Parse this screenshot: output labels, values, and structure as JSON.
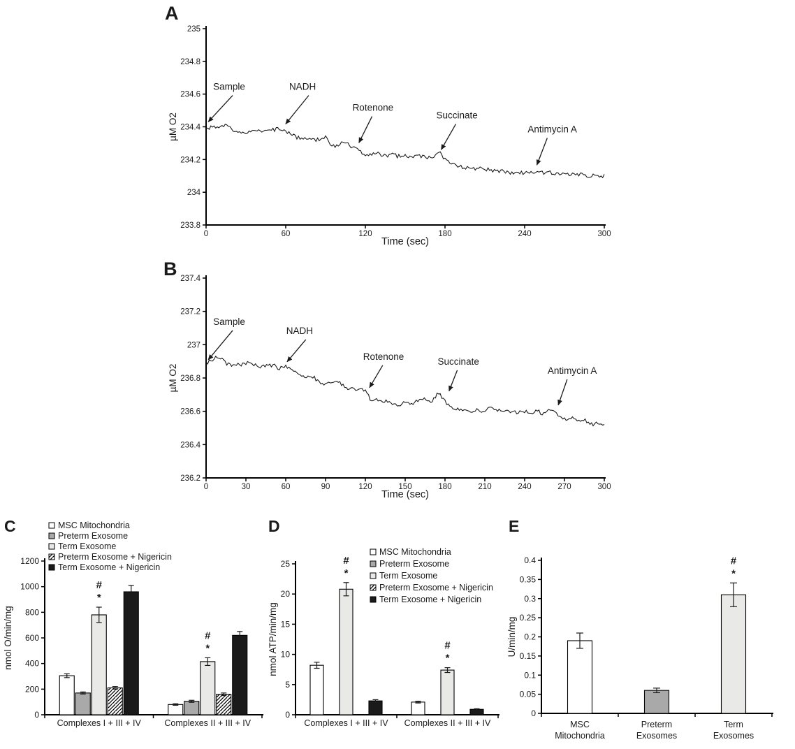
{
  "figure": {
    "panel_labels": [
      "A",
      "B",
      "C",
      "D",
      "E"
    ],
    "palette": {
      "white": "#ffffff",
      "gray": "#a9a9a9",
      "lightgray": "#e9e9e7",
      "black": "#1a1a1a",
      "line": "#000000",
      "text": "#1a1a1a"
    }
  },
  "chart_data": [
    {
      "id": "A",
      "type": "line",
      "xlabel": "Time (sec)",
      "ylabel": "µM O2",
      "xlim": [
        0,
        300
      ],
      "xticks": [
        0,
        60,
        120,
        180,
        240,
        300
      ],
      "ylim": [
        233.8,
        235
      ],
      "yticks": [
        233.8,
        234,
        234.2,
        234.4,
        234.6,
        234.8,
        235
      ],
      "noise": 0.012,
      "anchors": [
        [
          0,
          234.38
        ],
        [
          5,
          234.4
        ],
        [
          10,
          234.39
        ],
        [
          15,
          234.41
        ],
        [
          20,
          234.38
        ],
        [
          25,
          234.37
        ],
        [
          30,
          234.36
        ],
        [
          35,
          234.38
        ],
        [
          40,
          234.37
        ],
        [
          45,
          234.38
        ],
        [
          50,
          234.38
        ],
        [
          55,
          234.39
        ],
        [
          60,
          234.37
        ],
        [
          65,
          234.35
        ],
        [
          70,
          234.33
        ],
        [
          75,
          234.33
        ],
        [
          80,
          234.32
        ],
        [
          85,
          234.32
        ],
        [
          90,
          234.34
        ],
        [
          95,
          234.28
        ],
        [
          100,
          234.29
        ],
        [
          105,
          234.31
        ],
        [
          110,
          234.27
        ],
        [
          115,
          234.26
        ],
        [
          120,
          234.22
        ],
        [
          125,
          234.23
        ],
        [
          130,
          234.24
        ],
        [
          135,
          234.22
        ],
        [
          140,
          234.23
        ],
        [
          145,
          234.22
        ],
        [
          150,
          234.23
        ],
        [
          155,
          234.21
        ],
        [
          160,
          234.22
        ],
        [
          165,
          234.22
        ],
        [
          170,
          234.21
        ],
        [
          175,
          234.25
        ],
        [
          180,
          234.2
        ],
        [
          185,
          234.17
        ],
        [
          190,
          234.16
        ],
        [
          195,
          234.15
        ],
        [
          200,
          234.15
        ],
        [
          210,
          234.14
        ],
        [
          220,
          234.13
        ],
        [
          230,
          234.12
        ],
        [
          240,
          234.12
        ],
        [
          250,
          234.12
        ],
        [
          260,
          234.12
        ],
        [
          270,
          234.11
        ],
        [
          280,
          234.11
        ],
        [
          290,
          234.1
        ],
        [
          300,
          234.1
        ]
      ],
      "annotations": [
        {
          "label": "Sample",
          "text": [
            5.3,
            234.643
          ],
          "tip": [
            1.6,
            234.43
          ]
        },
        {
          "label": "NADH",
          "text": [
            62.6,
            234.643
          ],
          "tip": [
            59.9,
            234.417
          ]
        },
        {
          "label": "Rotenone",
          "text": [
            110.3,
            234.515
          ],
          "tip": [
            115.1,
            234.302
          ]
        },
        {
          "label": "Succinate",
          "text": [
            173.4,
            234.468
          ],
          "tip": [
            177.1,
            234.26
          ]
        },
        {
          "label": "Antimycin A",
          "text": [
            242.3,
            234.383
          ],
          "tip": [
            249.2,
            234.166
          ]
        }
      ]
    },
    {
      "id": "B",
      "type": "line",
      "xlabel": "Time (sec)",
      "ylabel": "µM O2",
      "xlim": [
        0,
        300
      ],
      "xticks": [
        0,
        30,
        60,
        90,
        120,
        150,
        180,
        210,
        240,
        270,
        300
      ],
      "ylim": [
        236.2,
        237.4
      ],
      "yticks": [
        236.2,
        236.4,
        236.6,
        236.8,
        237,
        237.2,
        237.4
      ],
      "noise": 0.012,
      "anchors": [
        [
          0,
          236.89
        ],
        [
          5,
          236.91
        ],
        [
          10,
          236.93
        ],
        [
          15,
          236.89
        ],
        [
          20,
          236.87
        ],
        [
          25,
          236.88
        ],
        [
          30,
          236.89
        ],
        [
          35,
          236.88
        ],
        [
          40,
          236.87
        ],
        [
          45,
          236.87
        ],
        [
          50,
          236.88
        ],
        [
          55,
          236.86
        ],
        [
          60,
          236.87
        ],
        [
          65,
          236.84
        ],
        [
          70,
          236.83
        ],
        [
          75,
          236.8
        ],
        [
          80,
          236.81
        ],
        [
          85,
          236.78
        ],
        [
          90,
          236.76
        ],
        [
          95,
          236.77
        ],
        [
          100,
          236.78
        ],
        [
          105,
          236.74
        ],
        [
          110,
          236.73
        ],
        [
          115,
          236.74
        ],
        [
          120,
          236.72
        ],
        [
          125,
          236.66
        ],
        [
          130,
          236.67
        ],
        [
          135,
          236.66
        ],
        [
          140,
          236.65
        ],
        [
          145,
          236.63
        ],
        [
          150,
          236.66
        ],
        [
          155,
          236.65
        ],
        [
          160,
          236.66
        ],
        [
          165,
          236.67
        ],
        [
          170,
          236.66
        ],
        [
          175,
          236.71
        ],
        [
          180,
          236.66
        ],
        [
          185,
          236.63
        ],
        [
          190,
          236.61
        ],
        [
          195,
          236.6
        ],
        [
          200,
          236.59
        ],
        [
          205,
          236.61
        ],
        [
          210,
          236.6
        ],
        [
          215,
          236.62
        ],
        [
          220,
          236.6
        ],
        [
          225,
          236.61
        ],
        [
          230,
          236.6
        ],
        [
          235,
          236.59
        ],
        [
          240,
          236.6
        ],
        [
          245,
          236.59
        ],
        [
          250,
          236.6
        ],
        [
          255,
          236.58
        ],
        [
          260,
          236.62
        ],
        [
          265,
          236.58
        ],
        [
          270,
          236.55
        ],
        [
          275,
          236.56
        ],
        [
          280,
          236.54
        ],
        [
          285,
          236.55
        ],
        [
          290,
          236.52
        ],
        [
          295,
          236.53
        ],
        [
          300,
          236.52
        ]
      ],
      "annotations": [
        {
          "label": "Sample",
          "text": [
            5.3,
            237.136
          ],
          "tip": [
            1.6,
            236.909
          ]
        },
        {
          "label": "NADH",
          "text": [
            60.4,
            237.081
          ],
          "tip": [
            61.0,
            236.897
          ]
        },
        {
          "label": "Rotenone",
          "text": [
            118.3,
            236.926
          ],
          "tip": [
            123.1,
            236.742
          ]
        },
        {
          "label": "Succinate",
          "text": [
            174.5,
            236.897
          ],
          "tip": [
            183.0,
            236.721
          ]
        },
        {
          "label": "Antimycin A",
          "text": [
            257.3,
            236.842
          ],
          "tip": [
            265.3,
            236.637
          ]
        }
      ]
    },
    {
      "id": "C",
      "type": "bar",
      "ylabel": "nmol O/min/mg",
      "ylim": [
        0,
        1200
      ],
      "yticks": [
        0,
        200,
        400,
        600,
        800,
        1000,
        1200
      ],
      "categories": [
        "Complexes I + III + IV",
        "Complexes II + III + IV"
      ],
      "legend_pos": "top-left",
      "series": [
        {
          "name": "MSC Mitochondria",
          "fill": "white",
          "values": [
            305,
            80
          ],
          "errors": [
            15,
            6
          ]
        },
        {
          "name": "Preterm Exosome",
          "fill": "gray",
          "values": [
            170,
            105
          ],
          "errors": [
            8,
            8
          ]
        },
        {
          "name": "Term Exosome",
          "fill": "lightgray",
          "values": [
            780,
            415
          ],
          "errors": [
            60,
            30
          ],
          "sig": [
            [
              "#",
              "*"
            ],
            [
              "#",
              "*"
            ]
          ]
        },
        {
          "name": "Preterm Exosome + Nigericin",
          "fill": "hatch",
          "values": [
            210,
            160
          ],
          "errors": [
            10,
            10
          ]
        },
        {
          "name": "Term Exosome  + Nigericin",
          "fill": "black",
          "values": [
            960,
            620
          ],
          "errors": [
            50,
            30
          ]
        }
      ]
    },
    {
      "id": "D",
      "type": "bar",
      "ylabel": "nmol ATP/min/mg",
      "ylim": [
        0,
        25
      ],
      "yticks": [
        0,
        5,
        10,
        15,
        20,
        25
      ],
      "categories": [
        "Complexes I + III + IV",
        "Complexes II + III + IV"
      ],
      "legend_pos": "top-right",
      "series": [
        {
          "name": "MSC Mitochondria",
          "fill": "white",
          "values": [
            8.2,
            2.1
          ],
          "errors": [
            0.5,
            0.15
          ]
        },
        {
          "name": "Preterm Exosome",
          "fill": "gray",
          "values": [
            null,
            null
          ]
        },
        {
          "name": "Term Exosome",
          "fill": "lightgray",
          "values": [
            20.8,
            7.4
          ],
          "errors": [
            1.1,
            0.4
          ],
          "sig": [
            [
              "#",
              "*"
            ],
            [
              "#",
              "*"
            ]
          ]
        },
        {
          "name": "Preterm Exosome + Nigericin",
          "fill": "hatch",
          "values": [
            null,
            null
          ]
        },
        {
          "name": "Term Exosome  + Nigericin",
          "fill": "black",
          "values": [
            2.3,
            0.9
          ],
          "errors": [
            0.2,
            0.1
          ]
        }
      ]
    },
    {
      "id": "E",
      "type": "bar",
      "ylabel": "U/min/mg",
      "ylim": [
        0,
        0.4
      ],
      "yticks": [
        0,
        0.05,
        0.1,
        0.15,
        0.2,
        0.25,
        0.3,
        0.35,
        0.4
      ],
      "bars": [
        {
          "label": [
            "MSC",
            "Mitochondria"
          ],
          "fill": "white",
          "value": 0.19,
          "error": 0.02
        },
        {
          "label": [
            "Preterm",
            "Exosomes"
          ],
          "fill": "gray",
          "value": 0.06,
          "error": 0.006
        },
        {
          "label": [
            "Term",
            "Exosomes"
          ],
          "fill": "lightgray",
          "value": 0.31,
          "error": 0.031,
          "sig": [
            "#",
            "*"
          ]
        }
      ]
    }
  ]
}
